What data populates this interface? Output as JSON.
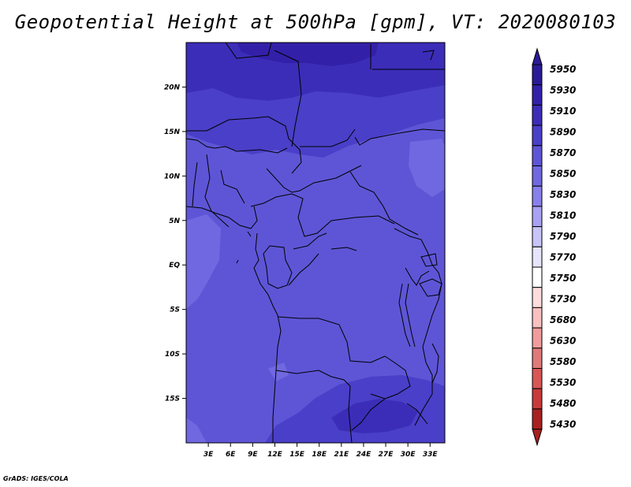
{
  "title": "Geopotential Height at 500hPa [gpm], VT: 2020080103",
  "credit": "GrADS: IGES/COLA",
  "map": {
    "lon_range": [
      0,
      35
    ],
    "lat_range": [
      -20,
      25
    ],
    "lon_ticks": [
      "3E",
      "6E",
      "9E",
      "12E",
      "15E",
      "18E",
      "21E",
      "24E",
      "27E",
      "30E",
      "33E"
    ],
    "lat_ticks": [
      "20N",
      "15N",
      "10N",
      "5N",
      "EQ",
      "5S",
      "10S",
      "15S"
    ],
    "field_colors": {
      "c5930": "#3320A8",
      "c5910": "#3C2DB8",
      "c5890": "#4A3FC8",
      "c5870": "#5E55D6",
      "c5850": "#7068E0",
      "c5830": "#8880EA"
    }
  },
  "colorbar": {
    "labels": [
      "5950",
      "5930",
      "5910",
      "5890",
      "5870",
      "5850",
      "5830",
      "5810",
      "5790",
      "5770",
      "5750",
      "5730",
      "5680",
      "5630",
      "5580",
      "5530",
      "5480",
      "5430"
    ],
    "colors": [
      "#2A1A96",
      "#3320A8",
      "#3C2DB8",
      "#4A3FC8",
      "#5E55D6",
      "#7068E0",
      "#8880EA",
      "#A8A2F2",
      "#C8C4F8",
      "#E6E4FC",
      "#FFFFFF",
      "#FCDCDC",
      "#F8C0C0",
      "#F09C9C",
      "#E07A7A",
      "#D85656",
      "#C83A3A",
      "#A82020"
    ],
    "top_color": "#2A1A96",
    "bottom_color": "#A82020"
  }
}
